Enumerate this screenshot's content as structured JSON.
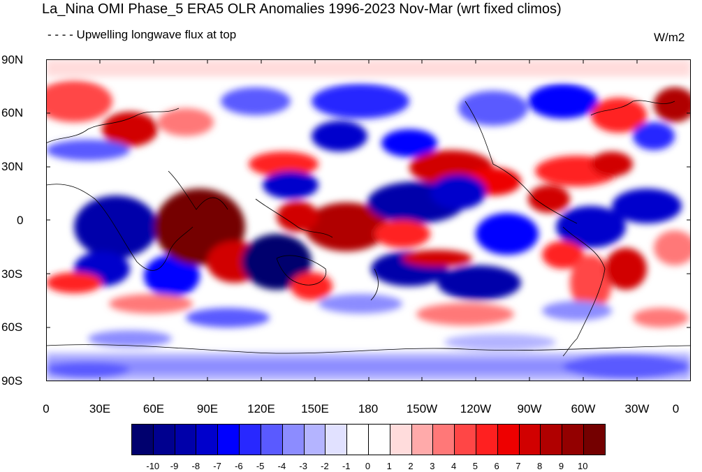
{
  "title": "La_Nina OMI Phase_5 ERA5 OLR Anomalies 1996-2023 Nov-Mar (wrt fixed climos)",
  "subtitle": "- - - - Upwelling longwave flux at top",
  "units": "W/m2",
  "lat_labels": [
    "90N",
    "60N",
    "30N",
    "0",
    "30S",
    "60S",
    "90S"
  ],
  "lon_labels": [
    "0",
    "30E",
    "60E",
    "90E",
    "120E",
    "150E",
    "180",
    "150W",
    "120W",
    "90W",
    "60W",
    "30W",
    "0"
  ],
  "colorbar": {
    "colors": [
      "#00006e",
      "#00008f",
      "#0000aa",
      "#0000cc",
      "#0000ff",
      "#2828ff",
      "#5a5aff",
      "#8c8cff",
      "#b4b4ff",
      "#e1e1ff",
      "#ffffff",
      "#ffffff",
      "#ffdcdc",
      "#ffaaaa",
      "#ff7878",
      "#ff4646",
      "#ff2020",
      "#ee0000",
      "#d10000",
      "#b00000",
      "#930000",
      "#740000"
    ],
    "labels": [
      "-10",
      "-9",
      "-8",
      "-7",
      "-6",
      "-5",
      "-4",
      "-3",
      "-2",
      "-1",
      "0",
      "1",
      "2",
      "3",
      "4",
      "5",
      "6",
      "7",
      "8",
      "9",
      "10"
    ]
  },
  "map_features": [
    "olr-anomaly-field",
    "coastlines"
  ]
}
